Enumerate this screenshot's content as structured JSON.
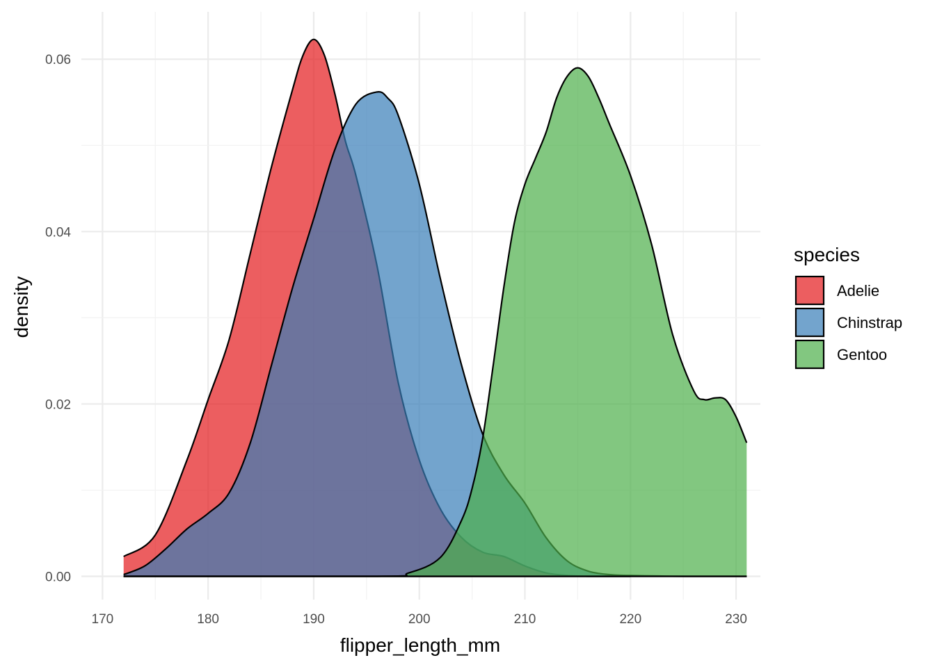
{
  "chart_data": {
    "type": "area",
    "subtype": "density",
    "title": "",
    "xlabel": "flipper_length_mm",
    "ylabel": "density",
    "xlim": [
      168,
      232.3
    ],
    "ylim": [
      -0.0027,
      0.0655
    ],
    "x_ticks": [
      170,
      180,
      190,
      200,
      210,
      220,
      230
    ],
    "x_tick_labels": [
      "170",
      "180",
      "190",
      "200",
      "210",
      "220",
      "230"
    ],
    "y_ticks": [
      0,
      0.02,
      0.04,
      0.06
    ],
    "y_tick_labels": [
      "0.00",
      "0.02",
      "0.04",
      "0.06"
    ],
    "grid": true,
    "legend": {
      "title": "species",
      "position": "right"
    },
    "series": [
      {
        "name": "Adelie",
        "color": "#E41A1C",
        "opacity": 0.7,
        "x": [
          172,
          175,
          178,
          180,
          182,
          184,
          186,
          188,
          189,
          190,
          191,
          192,
          193,
          194,
          196,
          198,
          200,
          202,
          204,
          206,
          208,
          210,
          212,
          214,
          216,
          218,
          220
        ],
        "y": [
          0.0023,
          0.0048,
          0.0135,
          0.0205,
          0.0275,
          0.0375,
          0.0475,
          0.0565,
          0.0605,
          0.0623,
          0.0605,
          0.056,
          0.0505,
          0.0465,
          0.036,
          0.0225,
          0.0135,
          0.0078,
          0.0045,
          0.0028,
          0.0023,
          0.0012,
          0.0004,
          0.0001,
          0.0,
          0.0,
          0.0
        ]
      },
      {
        "name": "Chinstrap",
        "color": "#377EB8",
        "opacity": 0.7,
        "x": [
          172,
          174,
          176,
          178,
          180,
          182,
          184,
          186,
          188,
          190,
          192,
          194,
          196,
          197,
          198,
          200,
          202,
          204,
          206,
          208,
          210,
          212,
          214,
          216,
          218,
          220,
          225,
          231
        ],
        "y": [
          0.0002,
          0.0012,
          0.0032,
          0.0055,
          0.0073,
          0.0097,
          0.0155,
          0.0245,
          0.0335,
          0.0415,
          0.0495,
          0.0548,
          0.0562,
          0.0555,
          0.0535,
          0.0455,
          0.0345,
          0.0245,
          0.0165,
          0.0118,
          0.0085,
          0.0045,
          0.0018,
          0.0006,
          0.0002,
          0.0001,
          0.0,
          0.0
        ]
      },
      {
        "name": "Gentoo",
        "color": "#4DAF4A",
        "opacity": 0.7,
        "x": [
          172,
          196,
          199,
          202,
          204,
          205,
          206,
          207,
          208,
          209,
          210,
          211,
          212,
          213,
          214,
          215,
          216,
          217,
          218,
          220,
          222,
          224,
          226,
          227,
          228,
          229,
          230,
          231
        ],
        "y": [
          0.0,
          0.0,
          0.0004,
          0.0022,
          0.0065,
          0.0102,
          0.016,
          0.0245,
          0.0335,
          0.041,
          0.0455,
          0.0485,
          0.0515,
          0.0555,
          0.058,
          0.059,
          0.058,
          0.0555,
          0.0525,
          0.0465,
          0.0385,
          0.028,
          0.0215,
          0.0205,
          0.0207,
          0.0205,
          0.0185,
          0.0155
        ]
      }
    ]
  }
}
